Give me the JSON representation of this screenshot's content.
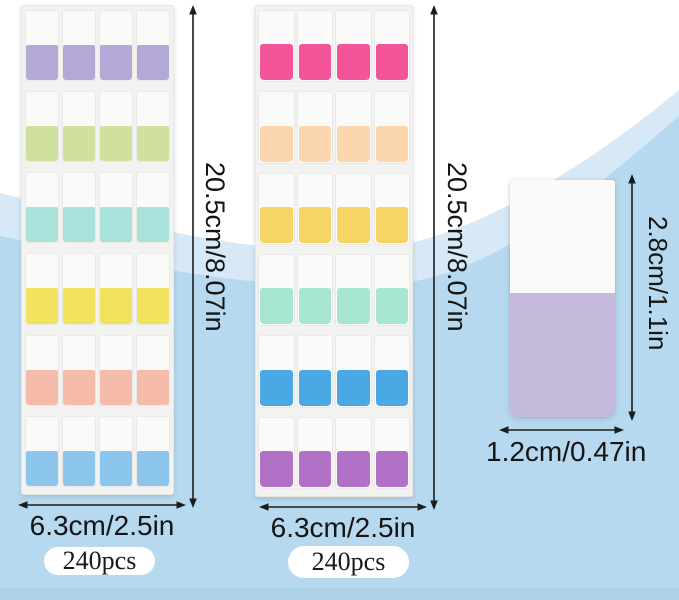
{
  "sheet1": {
    "rows": 6,
    "cols": 4,
    "row_colors": [
      "#b4a9d6",
      "#cfe19c",
      "#a9e2da",
      "#f1e35e",
      "#f6bcab",
      "#8cc6ed"
    ],
    "height_dim": "20.5cm/8.07in",
    "width_dim": "6.3cm/2.5in",
    "pcs": "240pcs"
  },
  "sheet2": {
    "rows": 6,
    "cols": 4,
    "row_colors": [
      "#f4549a",
      "#fbd6ae",
      "#f7d466",
      "#a7e7d2",
      "#4aa8e4",
      "#b171c6"
    ],
    "height_dim": "20.5cm/8.07in",
    "width_dim": "6.3cm/2.5in",
    "pcs": "240pcs"
  },
  "single_tab": {
    "bottom_color": "#c5badc",
    "height_dim": "2.8cm/1.1in",
    "width_dim": "1.2cm/0.47in"
  },
  "colors": {
    "wave_light": "#d7e9f6",
    "wave_medium": "#b6d9ef",
    "wave_bottom": "#aed1e6"
  }
}
